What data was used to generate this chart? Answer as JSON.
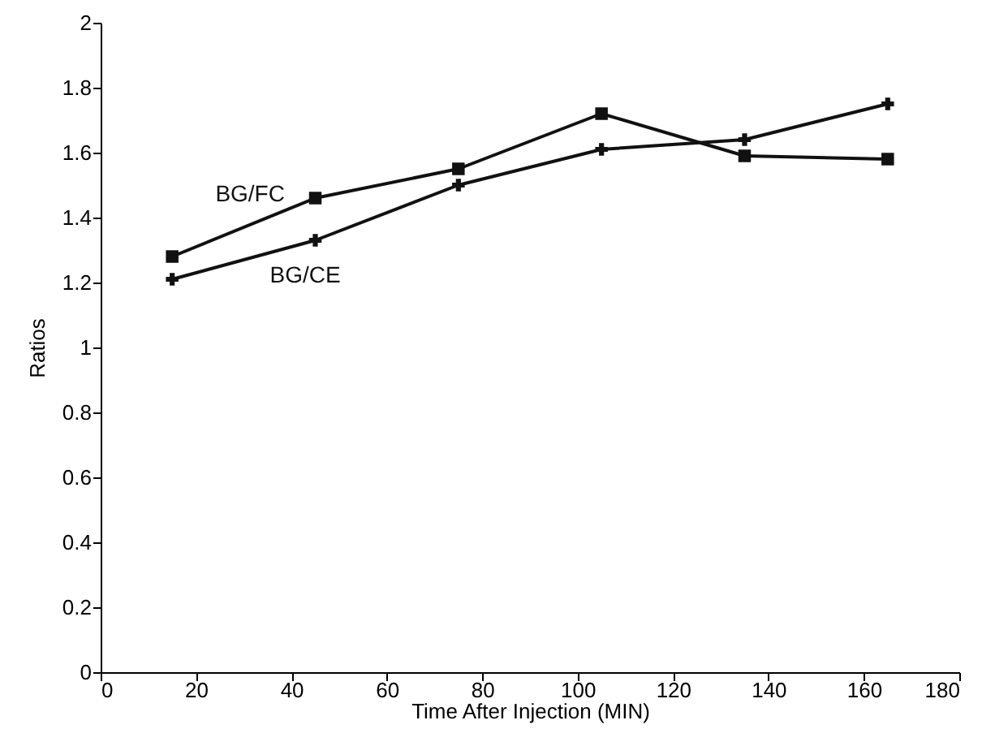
{
  "chart_data": {
    "type": "line",
    "xlabel": "Time After Injection (MIN)",
    "ylabel": "Ratios",
    "x": [
      15,
      45,
      75,
      105,
      135,
      165
    ],
    "series": [
      {
        "name": "BG/FC",
        "color": "#111111",
        "marker": "square",
        "values": [
          1.28,
          1.46,
          1.55,
          1.72,
          1.59,
          1.58
        ]
      },
      {
        "name": "BG/CE",
        "color": "#111111",
        "marker": "cross",
        "values": [
          1.21,
          1.33,
          1.5,
          1.61,
          1.64,
          1.75
        ]
      }
    ],
    "xlim": [
      0,
      180
    ],
    "xticks": [
      0,
      20,
      40,
      60,
      80,
      100,
      120,
      140,
      160,
      180
    ],
    "ylim": [
      0,
      2
    ],
    "yticks": [
      0,
      0.2,
      0.4,
      0.6,
      0.8,
      1,
      1.2,
      1.4,
      1.6,
      1.8,
      2
    ],
    "grid": false,
    "line_style": "solid"
  }
}
